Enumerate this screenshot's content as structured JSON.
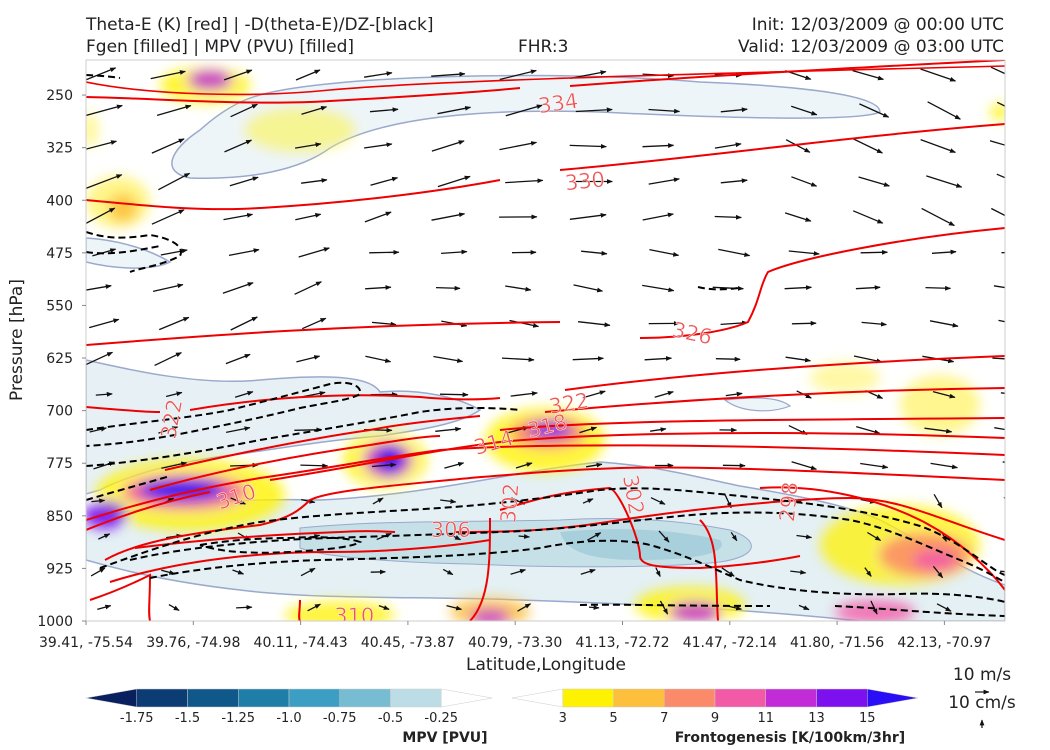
{
  "header": {
    "title_line1": "Theta-E (K) [red] | -D(theta-E)/DZ-[black]",
    "title_line2": "Fgen [filled] | MPV (PVU) [filled]",
    "fhr": "FHR:3",
    "init": "Init: 12/03/2009 @ 00:00 UTC",
    "valid": "Valid: 12/03/2009 @ 03:00 UTC"
  },
  "chart_data": {
    "type": "cross-section",
    "xlabel": "Latitude,Longitude",
    "ylabel": "Pressure [hPa]",
    "ylim": [
      1000,
      200
    ],
    "yticks": [
      250,
      325,
      400,
      475,
      550,
      625,
      700,
      775,
      850,
      925,
      1000
    ],
    "xticks": [
      "39.41, -75.54",
      "39.76, -74.98",
      "40.11, -74.43",
      "40.45, -73.87",
      "40.79, -73.30",
      "41.13, -72.72",
      "41.47, -72.14",
      "41.80, -71.56",
      "42.13, -70.97"
    ],
    "theta_e_labels": [
      {
        "text": "334",
        "x": 4.4,
        "p": 262,
        "rot": -8
      },
      {
        "text": "330",
        "x": 4.65,
        "p": 373,
        "rot": -6
      },
      {
        "text": "326",
        "x": 5.65,
        "p": 590,
        "rot": 12
      },
      {
        "text": "322",
        "x": 4.5,
        "p": 690,
        "rot": -10
      },
      {
        "text": "318",
        "x": 4.3,
        "p": 722,
        "rot": -14
      },
      {
        "text": "314",
        "x": 3.8,
        "p": 746,
        "rot": -16
      },
      {
        "text": "310",
        "x": 1.4,
        "p": 823,
        "rot": -18
      },
      {
        "text": "306",
        "x": 3.4,
        "p": 870,
        "rot": 0
      },
      {
        "text": "310",
        "x": 2.5,
        "p": 993,
        "rot": 0
      },
      {
        "text": "322",
        "x": 0.8,
        "p": 712,
        "rot": -80
      },
      {
        "text": "302",
        "x": 3.95,
        "p": 832,
        "rot": -85
      },
      {
        "text": "302",
        "x": 5.1,
        "p": 820,
        "rot": 80
      },
      {
        "text": "298",
        "x": 6.55,
        "p": 830,
        "rot": -85
      }
    ],
    "mpv_colorbar": {
      "label": "MPV [PVU]",
      "ticks": [
        "-1.75",
        "-1.5",
        "-1.25",
        "-1.0",
        "-0.75",
        "-0.5",
        "-0.25"
      ],
      "colors": [
        "#08205e",
        "#0b3d74",
        "#10578a",
        "#1e7ea8",
        "#3d9ec3",
        "#78bcd2",
        "#bcdce6",
        "#ffffff"
      ]
    },
    "fgen_colorbar": {
      "label": "Frontogenesis [K/100km/3hr]",
      "ticks": [
        "3",
        "5",
        "7",
        "9",
        "11",
        "13",
        "15"
      ],
      "colors": [
        "#ffffff",
        "#fff200",
        "#fcc03c",
        "#fb8a6a",
        "#f25aa7",
        "#c22cd6",
        "#7d10ef",
        "#2a0ef5"
      ]
    },
    "vector_key": {
      "horizontal": "10 m/s",
      "vertical": "10 cm/s"
    }
  },
  "colors": {
    "theta_e": "#ee0000",
    "dthetadz": "#000000",
    "mpv_outline": "#9aa9cc"
  }
}
